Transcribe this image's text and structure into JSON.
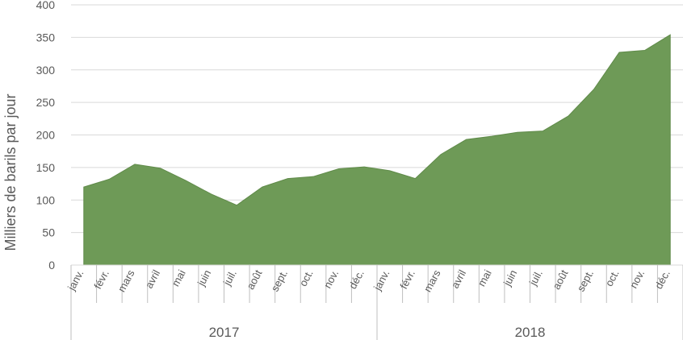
{
  "chart_data": {
    "type": "area",
    "ylabel": "Milliers de barils par jour",
    "ylim": [
      0,
      400
    ],
    "yticks": [
      0,
      50,
      100,
      150,
      200,
      250,
      300,
      350,
      400
    ],
    "grid": true,
    "color": "#6e9a57",
    "groups": [
      {
        "label": "2017",
        "months": [
          "janv.",
          "févr.",
          "mars",
          "avril",
          "mai",
          "juin",
          "juil.",
          "août",
          "sept.",
          "oct.",
          "nov.",
          "déc."
        ]
      },
      {
        "label": "2018",
        "months": [
          "janv.",
          "févr.",
          "mars",
          "avril",
          "mai",
          "juin",
          "juil.",
          "août",
          "sept.",
          "oct.",
          "nov.",
          "déc."
        ]
      }
    ],
    "values": [
      120,
      132,
      155,
      149,
      130,
      109,
      92,
      120,
      133,
      136,
      148,
      151,
      145,
      133,
      170,
      193,
      198,
      204,
      206,
      229,
      270,
      327,
      330,
      354
    ]
  }
}
